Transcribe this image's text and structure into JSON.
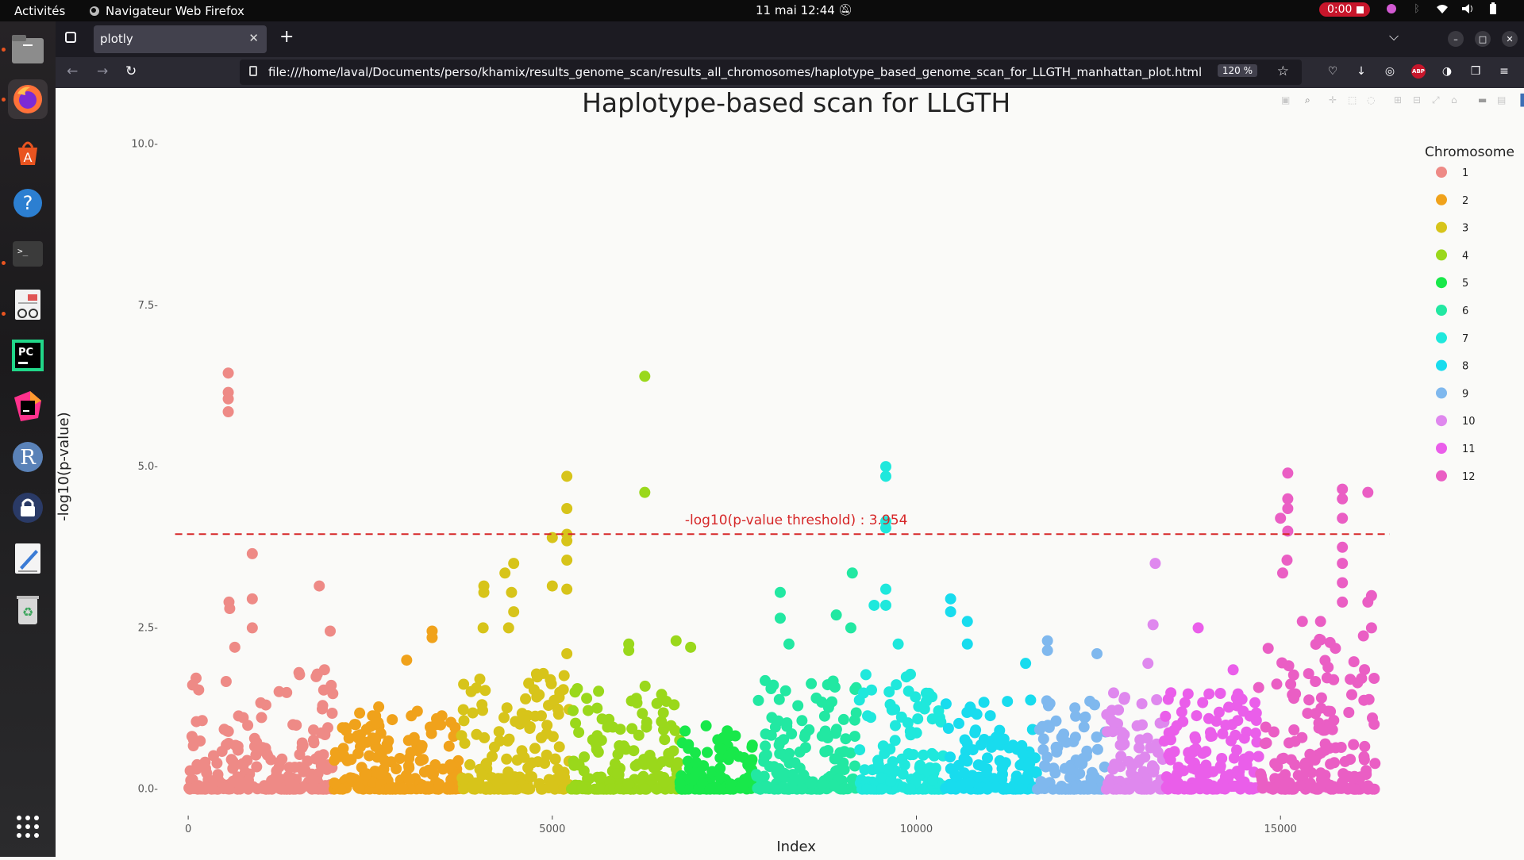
{
  "topbar": {
    "activities": "Activités",
    "app_name": "Navigateur Web Firefox",
    "clock": "11 mai  12:44",
    "recording_time": "0:00"
  },
  "browser": {
    "tab_title": "plotly",
    "url": "file:///home/laval/Documents/perso/khamix/results_genome_scan/results_all_chromosomes/haplotype_based_genome_scan_for_LLGTH_manhattan_plot.html",
    "zoom": "120 %"
  },
  "dock": {
    "items": [
      "files-icon",
      "firefox-icon",
      "app-center-icon",
      "help-icon",
      "terminal-icon",
      "document-viewer-icon",
      "pycharm-icon",
      "jetbrains-toolbox-icon",
      "r-icon",
      "password-manager-icon",
      "text-editor-icon",
      "trash-icon",
      "show-apps-icon"
    ]
  },
  "chart_data": {
    "type": "scatter",
    "title": "Haplotype-based scan for LLGTH",
    "xlabel": "Index",
    "ylabel": "-log10(p-value)",
    "xlim": [
      -350,
      16600
    ],
    "ylim": [
      -0.2,
      10.4
    ],
    "xticks": [
      "0",
      "5000",
      "10000",
      "15000"
    ],
    "xtick_values": [
      0,
      5000,
      10000,
      15000
    ],
    "yticks": [
      "0.0",
      "2.5",
      "5.0",
      "7.5",
      "10.0"
    ],
    "ytick_values": [
      0,
      2.5,
      5,
      7.5,
      10
    ],
    "grid": false,
    "legend": {
      "title": "Chromosome",
      "placement": "right",
      "labels": [
        "1",
        "2",
        "3",
        "4",
        "5",
        "6",
        "7",
        "8",
        "9",
        "10",
        "11",
        "12"
      ]
    },
    "threshold": {
      "value": 3.954,
      "label": "-log10(p-value threshold) : 3.954",
      "color": "#d62728"
    },
    "chromosomes": [
      {
        "name": "1",
        "range": [
          0,
          2000
        ],
        "color": "#ee8a86",
        "typical_max": 1.9
      },
      {
        "name": "2",
        "range": [
          2000,
          3750
        ],
        "color": "#f0a21b",
        "typical_max": 1.3
      },
      {
        "name": "3",
        "range": [
          3750,
          5250
        ],
        "color": "#d7c41a",
        "typical_max": 1.8
      },
      {
        "name": "4",
        "range": [
          5250,
          6750
        ],
        "color": "#9ad81b",
        "typical_max": 1.6
      },
      {
        "name": "5",
        "range": [
          6750,
          7800
        ],
        "color": "#18e84a",
        "typical_max": 1.0
      },
      {
        "name": "6",
        "range": [
          7800,
          9200
        ],
        "color": "#22e8a2",
        "typical_max": 1.7
      },
      {
        "name": "7",
        "range": [
          9200,
          10400
        ],
        "color": "#1fe8dc",
        "typical_max": 1.8
      },
      {
        "name": "8",
        "range": [
          10400,
          11650
        ],
        "color": "#18dcee",
        "typical_max": 1.4
      },
      {
        "name": "9",
        "range": [
          11650,
          12600
        ],
        "color": "#7fb8ee",
        "typical_max": 1.4
      },
      {
        "name": "10",
        "range": [
          12600,
          13400
        ],
        "color": "#df88ee",
        "typical_max": 1.6
      },
      {
        "name": "11",
        "range": [
          13400,
          14700
        ],
        "color": "#ea5eea",
        "typical_max": 1.6
      },
      {
        "name": "12",
        "range": [
          14700,
          16300
        ],
        "color": "#ea5ec4",
        "typical_max": 2.4
      }
    ],
    "notable_points": [
      {
        "chr": "1",
        "x": 550,
        "y": 6.45
      },
      {
        "chr": "1",
        "x": 550,
        "y": 6.15
      },
      {
        "chr": "1",
        "x": 550,
        "y": 6.05
      },
      {
        "chr": "1",
        "x": 550,
        "y": 5.85
      },
      {
        "chr": "1",
        "x": 880,
        "y": 3.65
      },
      {
        "chr": "1",
        "x": 880,
        "y": 2.95
      },
      {
        "chr": "1",
        "x": 560,
        "y": 2.9
      },
      {
        "chr": "1",
        "x": 570,
        "y": 2.8
      },
      {
        "chr": "1",
        "x": 1800,
        "y": 3.15
      },
      {
        "chr": "1",
        "x": 1950,
        "y": 2.45
      },
      {
        "chr": "1",
        "x": 880,
        "y": 2.5
      },
      {
        "chr": "1",
        "x": 640,
        "y": 2.2
      },
      {
        "chr": "2",
        "x": 3000,
        "y": 2.0
      },
      {
        "chr": "2",
        "x": 3350,
        "y": 2.45
      },
      {
        "chr": "2",
        "x": 3350,
        "y": 2.35
      },
      {
        "chr": "3",
        "x": 4060,
        "y": 3.15
      },
      {
        "chr": "3",
        "x": 4060,
        "y": 3.05
      },
      {
        "chr": "3",
        "x": 4350,
        "y": 3.35
      },
      {
        "chr": "3",
        "x": 4470,
        "y": 3.5
      },
      {
        "chr": "3",
        "x": 4440,
        "y": 3.05
      },
      {
        "chr": "3",
        "x": 4470,
        "y": 2.75
      },
      {
        "chr": "3",
        "x": 4050,
        "y": 2.5
      },
      {
        "chr": "3",
        "x": 4400,
        "y": 2.5
      },
      {
        "chr": "3",
        "x": 5200,
        "y": 4.85
      },
      {
        "chr": "3",
        "x": 5200,
        "y": 4.35
      },
      {
        "chr": "3",
        "x": 5000,
        "y": 3.9
      },
      {
        "chr": "3",
        "x": 5200,
        "y": 3.95
      },
      {
        "chr": "3",
        "x": 5200,
        "y": 3.85
      },
      {
        "chr": "3",
        "x": 5200,
        "y": 3.55
      },
      {
        "chr": "3",
        "x": 5000,
        "y": 3.15
      },
      {
        "chr": "3",
        "x": 5200,
        "y": 3.1
      },
      {
        "chr": "3",
        "x": 5200,
        "y": 2.1
      },
      {
        "chr": "4",
        "x": 6270,
        "y": 6.4
      },
      {
        "chr": "4",
        "x": 6270,
        "y": 4.6
      },
      {
        "chr": "4",
        "x": 6050,
        "y": 2.25
      },
      {
        "chr": "4",
        "x": 6050,
        "y": 2.15
      },
      {
        "chr": "4",
        "x": 6700,
        "y": 2.3
      },
      {
        "chr": "4",
        "x": 6900,
        "y": 2.2
      },
      {
        "chr": "6",
        "x": 8130,
        "y": 3.05
      },
      {
        "chr": "6",
        "x": 8130,
        "y": 2.65
      },
      {
        "chr": "6",
        "x": 9120,
        "y": 3.35
      },
      {
        "chr": "6",
        "x": 8900,
        "y": 2.7
      },
      {
        "chr": "6",
        "x": 9100,
        "y": 2.5
      },
      {
        "chr": "6",
        "x": 8250,
        "y": 2.25
      },
      {
        "chr": "7",
        "x": 9580,
        "y": 5.0
      },
      {
        "chr": "7",
        "x": 9580,
        "y": 4.85
      },
      {
        "chr": "7",
        "x": 9580,
        "y": 4.15
      },
      {
        "chr": "7",
        "x": 9580,
        "y": 4.05
      },
      {
        "chr": "7",
        "x": 9580,
        "y": 3.1
      },
      {
        "chr": "7",
        "x": 9580,
        "y": 2.85
      },
      {
        "chr": "7",
        "x": 9420,
        "y": 2.85
      },
      {
        "chr": "7",
        "x": 9750,
        "y": 2.25
      },
      {
        "chr": "8",
        "x": 10470,
        "y": 2.95
      },
      {
        "chr": "8",
        "x": 10470,
        "y": 2.75
      },
      {
        "chr": "8",
        "x": 10700,
        "y": 2.6
      },
      {
        "chr": "8",
        "x": 10700,
        "y": 2.25
      },
      {
        "chr": "8",
        "x": 11500,
        "y": 1.95
      },
      {
        "chr": "9",
        "x": 11800,
        "y": 2.3
      },
      {
        "chr": "9",
        "x": 11800,
        "y": 2.15
      },
      {
        "chr": "9",
        "x": 12480,
        "y": 2.1
      },
      {
        "chr": "10",
        "x": 13280,
        "y": 3.5
      },
      {
        "chr": "10",
        "x": 13250,
        "y": 2.55
      },
      {
        "chr": "10",
        "x": 13180,
        "y": 1.95
      },
      {
        "chr": "11",
        "x": 13870,
        "y": 2.5
      },
      {
        "chr": "11",
        "x": 14350,
        "y": 1.85
      },
      {
        "chr": "12",
        "x": 15100,
        "y": 4.9
      },
      {
        "chr": "12",
        "x": 15100,
        "y": 4.5
      },
      {
        "chr": "12",
        "x": 15100,
        "y": 4.35
      },
      {
        "chr": "12",
        "x": 15000,
        "y": 4.2
      },
      {
        "chr": "12",
        "x": 15100,
        "y": 4.0
      },
      {
        "chr": "12",
        "x": 15090,
        "y": 3.55
      },
      {
        "chr": "12",
        "x": 15030,
        "y": 3.35
      },
      {
        "chr": "12",
        "x": 15850,
        "y": 4.65
      },
      {
        "chr": "12",
        "x": 15850,
        "y": 4.5
      },
      {
        "chr": "12",
        "x": 15850,
        "y": 4.2
      },
      {
        "chr": "12",
        "x": 15850,
        "y": 3.75
      },
      {
        "chr": "12",
        "x": 15850,
        "y": 3.5
      },
      {
        "chr": "12",
        "x": 15850,
        "y": 3.2
      },
      {
        "chr": "12",
        "x": 15850,
        "y": 2.9
      },
      {
        "chr": "12",
        "x": 16200,
        "y": 4.6
      },
      {
        "chr": "12",
        "x": 16250,
        "y": 3.0
      },
      {
        "chr": "12",
        "x": 16200,
        "y": 2.9
      },
      {
        "chr": "12",
        "x": 16250,
        "y": 2.5
      },
      {
        "chr": "12",
        "x": 15300,
        "y": 2.6
      },
      {
        "chr": "12",
        "x": 15550,
        "y": 2.6
      }
    ]
  }
}
